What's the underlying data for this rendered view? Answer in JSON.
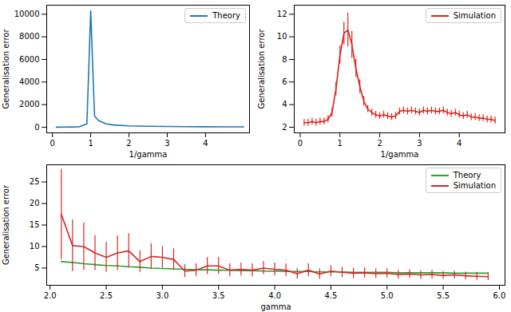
{
  "chart_data": [
    {
      "type": "line",
      "x_label": "1/gamma",
      "y_label": "Generalisation error",
      "xlim": [
        -0.15,
        5.15
      ],
      "ylim": [
        -500,
        10800
      ],
      "xticks": [
        0,
        1,
        2,
        3,
        4
      ],
      "yticks": [
        0,
        2000,
        4000,
        6000,
        8000,
        10000
      ],
      "legend": "upper right",
      "x": [
        0.1,
        0.3,
        0.5,
        0.7,
        0.9,
        1.0,
        1.1,
        1.2,
        1.4,
        1.6,
        2.0,
        2.5,
        3.0,
        3.5,
        4.0,
        4.5,
        5.0
      ],
      "series": [
        {
          "name": "Theory",
          "color": "#1f77b4",
          "values": [
            5,
            10,
            20,
            40,
            300,
            10300,
            1000,
            600,
            300,
            200,
            120,
            80,
            60,
            50,
            40,
            35,
            30
          ]
        }
      ]
    },
    {
      "type": "line",
      "x_label": "1/gamma",
      "y_label": "Generalisation error",
      "xlim": [
        -0.15,
        5.15
      ],
      "ylim": [
        1.5,
        12.8
      ],
      "xticks": [
        0,
        1,
        2,
        3,
        4
      ],
      "yticks": [
        2,
        4,
        6,
        8,
        10,
        12
      ],
      "legend": "upper right",
      "x": [
        0.1,
        0.2,
        0.3,
        0.4,
        0.5,
        0.6,
        0.7,
        0.8,
        0.9,
        1.0,
        1.1,
        1.2,
        1.3,
        1.4,
        1.5,
        1.6,
        1.7,
        1.8,
        1.9,
        2.0,
        2.1,
        2.2,
        2.3,
        2.4,
        2.5,
        2.6,
        2.7,
        2.8,
        2.9,
        3.0,
        3.1,
        3.2,
        3.3,
        3.4,
        3.5,
        3.6,
        3.7,
        3.8,
        3.9,
        4.0,
        4.1,
        4.2,
        4.3,
        4.4,
        4.5,
        4.6,
        4.7,
        4.8,
        4.9
      ],
      "series": [
        {
          "name": "Simulation",
          "color": "#e0201b",
          "values": [
            2.4,
            2.4,
            2.5,
            2.4,
            2.5,
            2.5,
            2.7,
            3.3,
            5.4,
            8.4,
            10.3,
            10.6,
            9.3,
            7.2,
            5.6,
            4.3,
            3.6,
            3.3,
            3.1,
            3.0,
            3.1,
            3.0,
            2.9,
            3.0,
            3.4,
            3.5,
            3.4,
            3.5,
            3.4,
            3.3,
            3.5,
            3.4,
            3.5,
            3.4,
            3.4,
            3.5,
            3.3,
            3.2,
            3.3,
            3.1,
            3.0,
            3.1,
            2.9,
            2.9,
            2.8,
            2.8,
            2.7,
            2.7,
            2.6
          ],
          "errors": [
            0.3,
            0.3,
            0.3,
            0.3,
            0.3,
            0.3,
            0.3,
            0.4,
            0.6,
            0.8,
            1.0,
            1.5,
            1.2,
            0.8,
            0.6,
            0.4,
            0.3,
            0.3,
            0.3,
            0.3,
            0.3,
            0.3,
            0.3,
            0.3,
            0.3,
            0.3,
            0.3,
            0.3,
            0.3,
            0.3,
            0.3,
            0.3,
            0.3,
            0.3,
            0.3,
            0.3,
            0.3,
            0.3,
            0.3,
            0.3,
            0.3,
            0.3,
            0.3,
            0.3,
            0.3,
            0.3,
            0.3,
            0.3,
            0.3
          ]
        }
      ]
    },
    {
      "type": "line",
      "x_label": "gamma",
      "y_label": "Generalisation error",
      "xlim": [
        1.97,
        6.05
      ],
      "ylim": [
        1,
        29
      ],
      "xticks": [
        {
          "value": 2,
          "label": "2.0"
        },
        {
          "value": 2.5,
          "label": "2.5"
        },
        {
          "value": 3,
          "label": "3.0"
        },
        {
          "value": 3.5,
          "label": "3.5"
        },
        {
          "value": 4,
          "label": "4.0"
        },
        {
          "value": 4.5,
          "label": "4.5"
        },
        {
          "value": 5,
          "label": "5.0"
        },
        {
          "value": 5.5,
          "label": "5.5"
        },
        {
          "value": 6,
          "label": "6.0"
        }
      ],
      "yticks": [
        5,
        10,
        15,
        20,
        25
      ],
      "legend": "upper right",
      "x": [
        2.1,
        2.2,
        2.3,
        2.4,
        2.5,
        2.6,
        2.7,
        2.8,
        2.9,
        3.0,
        3.1,
        3.2,
        3.3,
        3.4,
        3.5,
        3.6,
        3.7,
        3.8,
        3.9,
        4.0,
        4.1,
        4.2,
        4.3,
        4.4,
        4.5,
        4.6,
        4.7,
        4.8,
        4.9,
        5.0,
        5.1,
        5.2,
        5.3,
        5.4,
        5.5,
        5.6,
        5.7,
        5.8,
        5.9
      ],
      "series": [
        {
          "name": "Theory",
          "color": "#2ca02c",
          "values": [
            6.5,
            6.3,
            6.0,
            5.8,
            5.6,
            5.5,
            5.3,
            5.2,
            5.0,
            4.9,
            4.8,
            4.7,
            4.6,
            4.6,
            4.5,
            4.5,
            4.4,
            4.4,
            4.3,
            4.3,
            4.2,
            4.2,
            4.2,
            4.1,
            4.1,
            4.1,
            4.0,
            4.0,
            4.0,
            4.0,
            3.9,
            3.9,
            3.9,
            3.9,
            3.9,
            3.8,
            3.8,
            3.8,
            3.8
          ]
        },
        {
          "name": "Simulation",
          "color": "#d62728",
          "values": [
            17.5,
            10.2,
            10.0,
            8.5,
            7.5,
            8.5,
            9.0,
            6.5,
            7.7,
            7.5,
            7.0,
            4.3,
            4.5,
            5.5,
            5.5,
            4.5,
            4.7,
            4.5,
            5.0,
            4.7,
            4.5,
            3.7,
            4.5,
            3.6,
            4.3,
            4.0,
            3.8,
            3.9,
            3.7,
            3.8,
            3.5,
            3.6,
            3.4,
            3.5,
            3.3,
            3.4,
            3.2,
            3.1,
            3.0
          ],
          "errors": [
            10.5,
            6.0,
            5.5,
            4.0,
            3.5,
            4.0,
            4.0,
            2.5,
            3.0,
            2.5,
            2.5,
            1.5,
            1.5,
            2.0,
            2.0,
            1.5,
            1.5,
            1.5,
            1.5,
            1.5,
            1.5,
            1.2,
            1.5,
            1.2,
            1.3,
            1.2,
            1.2,
            1.2,
            1.1,
            1.1,
            1.0,
            1.0,
            1.0,
            1.0,
            0.9,
            0.9,
            0.9,
            0.9,
            0.9
          ]
        }
      ]
    }
  ]
}
